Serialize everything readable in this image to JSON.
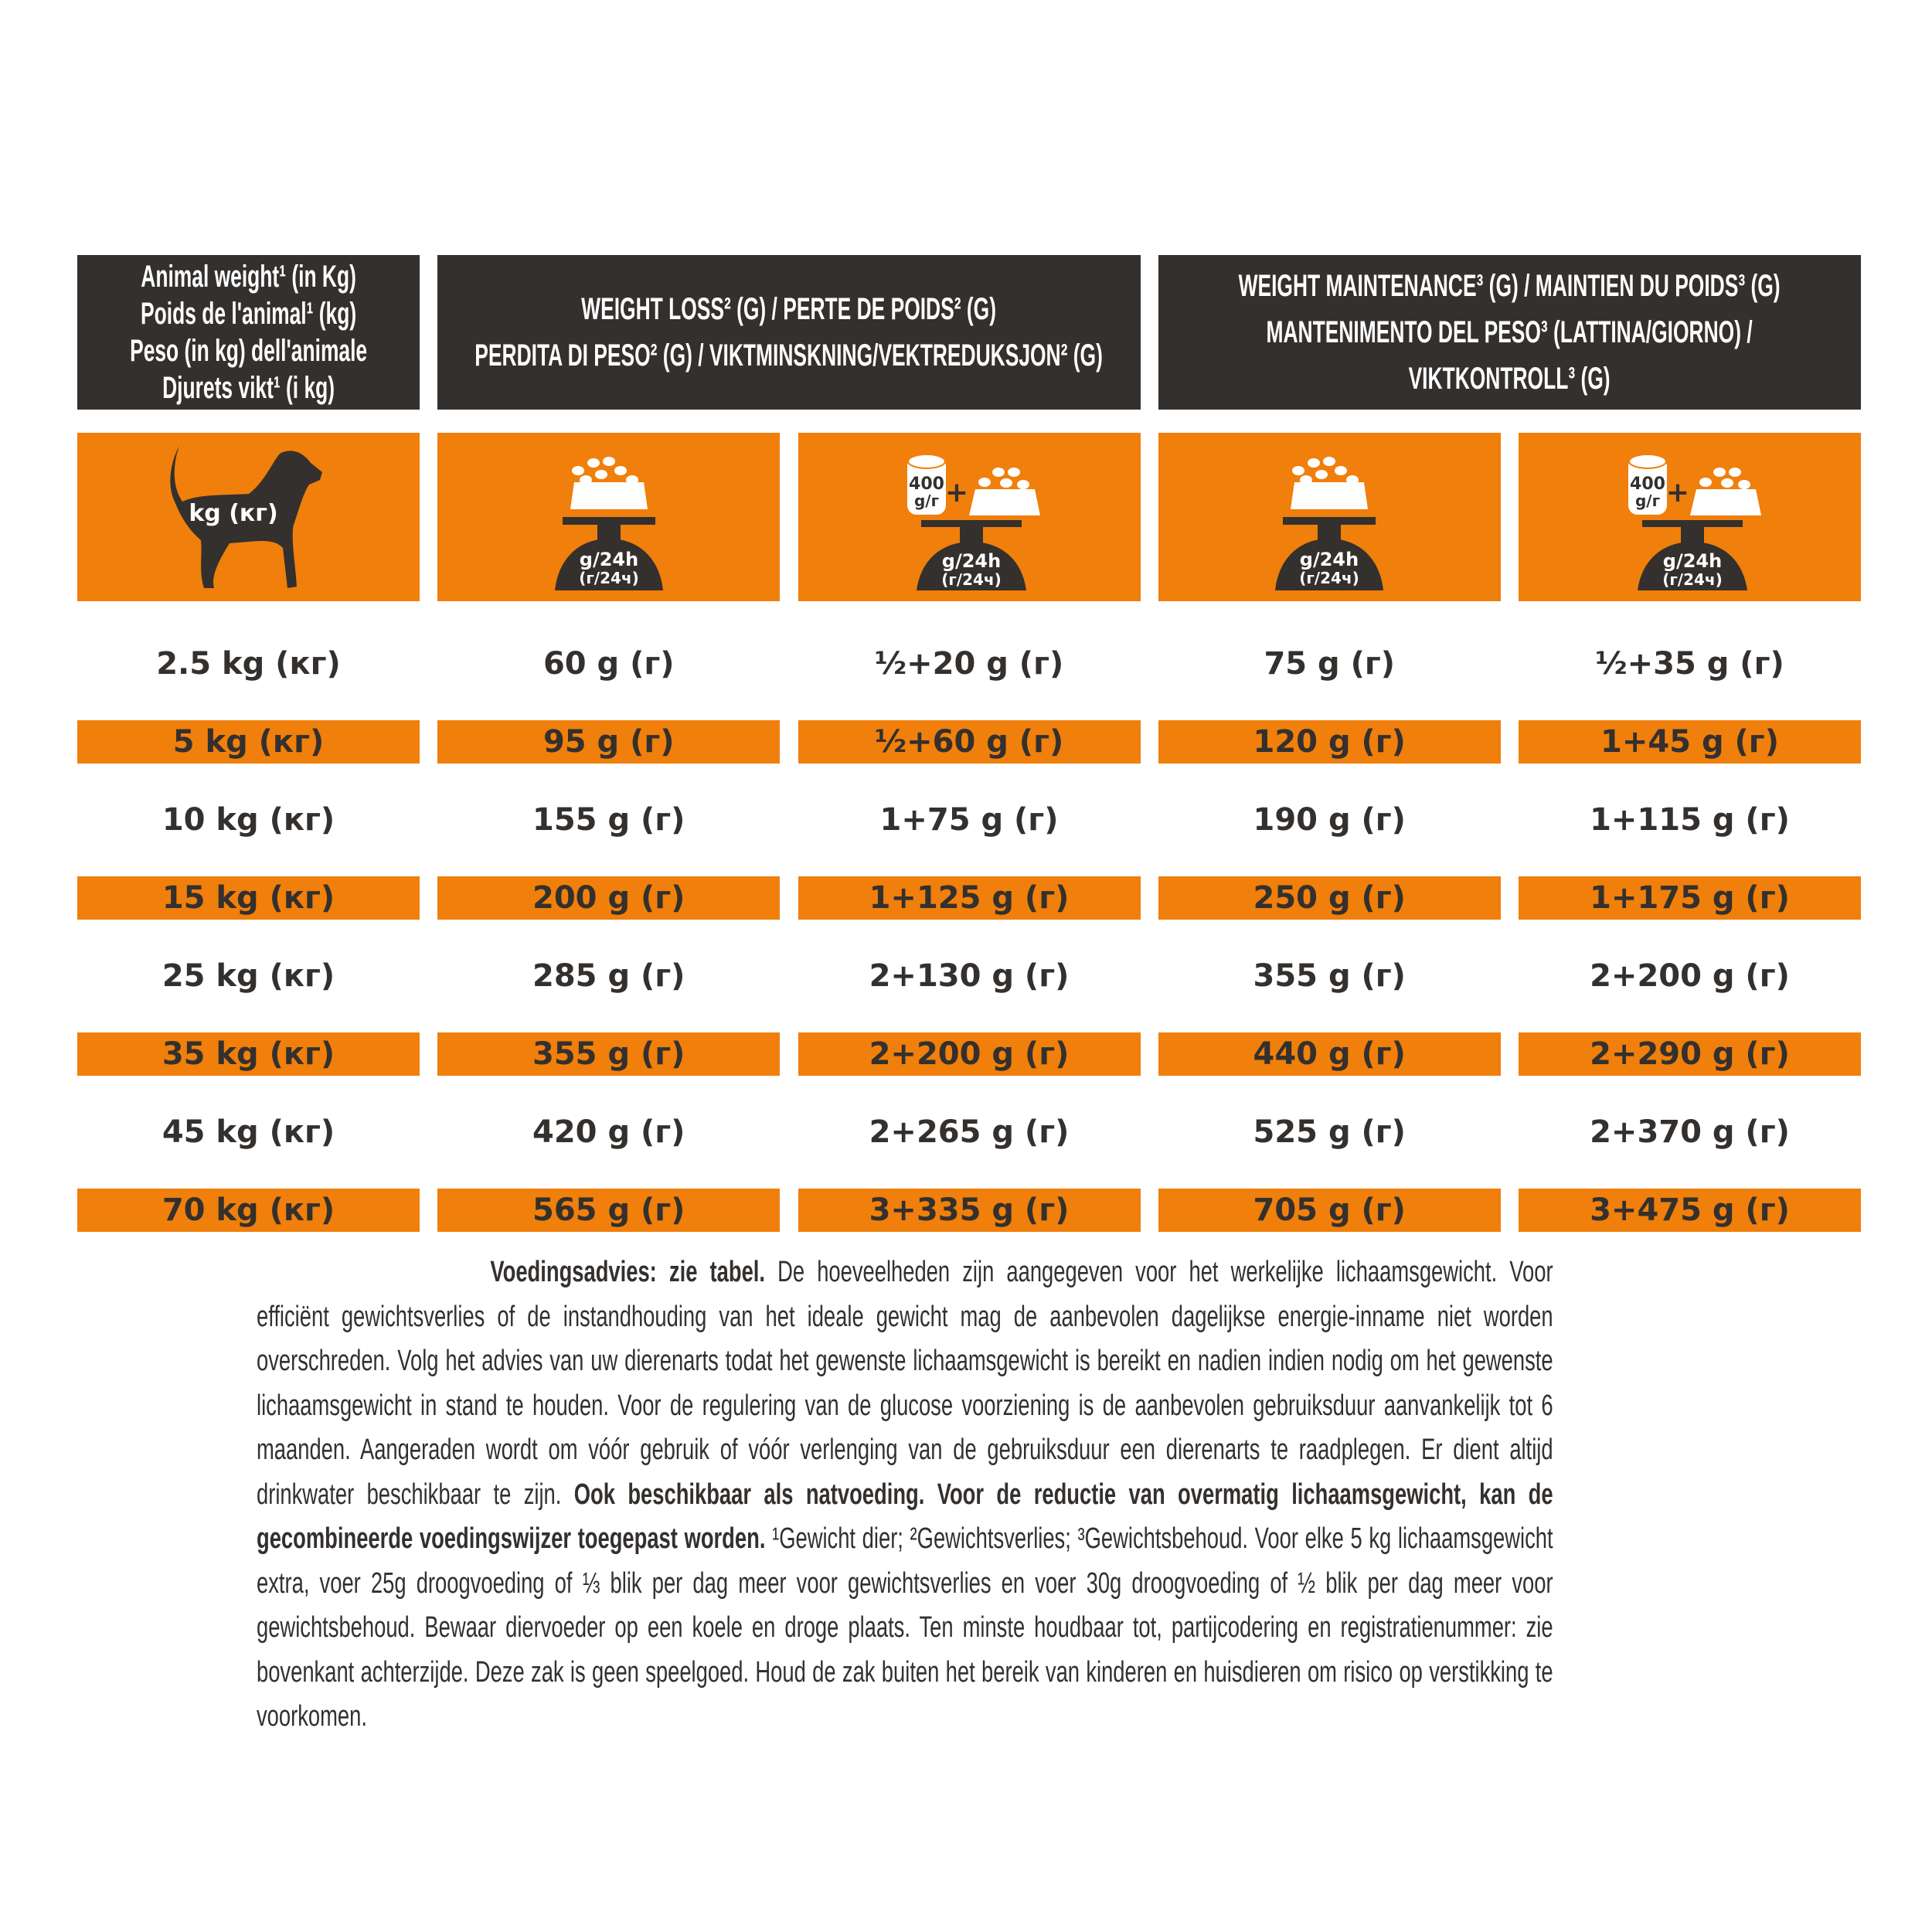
{
  "colors": {
    "orange": "#f07f0b",
    "dark": "#33302e"
  },
  "headers": {
    "weight": [
      "Animal weight¹ (in Kg)",
      "Poids de l'animal¹ (kg)",
      "Peso (in kg) dell'animale",
      "Djurets vikt¹ (i kg)"
    ],
    "loss": [
      "WEIGHT LOSS² (G) / PERTE DE POIDS² (G)",
      "PERDITA DI PESO² (G) / VIKTMINSKNING/VEKTREDUKSJON² (G)"
    ],
    "maintenance": [
      "WEIGHT MAINTENANCE³ (G) / MAINTIEN DU POIDS³ (G)",
      "MANTENIMENTO DEL PESO³ (LATTINA/GIORNO) /",
      "VIKTKONTROLL³ (G)"
    ]
  },
  "icons": {
    "dog_label": "kg (кг)",
    "scale_line1": "g/24h",
    "scale_line2": "(г/24ч)",
    "can_line1": "400",
    "can_line2": "g/г",
    "plus": "+",
    "names": [
      "dog-icon",
      "dry-food-scale-icon",
      "can-plus-dry-food-scale-icon",
      "dry-food-scale-icon",
      "can-plus-dry-food-scale-icon"
    ]
  },
  "rows": [
    [
      "2.5 kg (кг)",
      "60 g (г)",
      "½+20 g (г)",
      "75 g (г)",
      "½+35 g (г)"
    ],
    [
      "5 kg (кг)",
      "95 g (г)",
      "½+60 g (г)",
      "120 g (г)",
      "1+45 g (г)"
    ],
    [
      "10 kg (кг)",
      "155 g (г)",
      "1+75 g (г)",
      "190 g (г)",
      "1+115 g (г)"
    ],
    [
      "15 kg (кг)",
      "200 g (г)",
      "1+125 g (г)",
      "250 g (г)",
      "1+175 g (г)"
    ],
    [
      "25 kg (кг)",
      "285 g (г)",
      "2+130 g (г)",
      "355 g (г)",
      "2+200 g (г)"
    ],
    [
      "35 kg (кг)",
      "355 g (г)",
      "2+200 g (г)",
      "440 g (г)",
      "2+290 g (г)"
    ],
    [
      "45 kg (кг)",
      "420 g (г)",
      "2+265 g (г)",
      "525 g (г)",
      "2+370 g (г)"
    ],
    [
      "70 kg (кг)",
      "565 g (г)",
      "3+335 g (г)",
      "705 g (г)",
      "3+475 g (г)"
    ]
  ],
  "paragraph": [
    {
      "bold": true,
      "text": "Voedingsadvies: zie tabel."
    },
    {
      "bold": false,
      "text": " De hoeveelheden zijn aangegeven voor het werkelijke lichaamsgewicht. Voor efficiënt gewichtsverlies of de instandhouding van het ideale gewicht mag de aanbevolen dagelijkse energie-inname niet worden overschreden. Volg het advies van uw dierenarts todat het gewenste lichaamsgewicht is bereikt en nadien indien nodig om het gewenste lichaamsgewicht in stand te houden. Voor de regulering van de glucose voorziening is de aanbevolen gebruiksduur aanvankelijk tot 6 maanden. Aangeraden wordt om vóór gebruik of vóór verlenging van de gebruiksduur een dierenarts te raadplegen. Er dient altijd drinkwater beschikbaar te zijn. "
    },
    {
      "bold": true,
      "text": "Ook beschikbaar als natvoeding. Voor de reductie van overmatig lichaamsgewicht, kan de gecombineerde voedingswijzer toegepast worden."
    },
    {
      "bold": false,
      "text": " ¹Gewicht dier; ²Gewichtsverlies; ³Gewichtsbehoud. Voor elke 5 kg lichaamsgewicht extra, voer 25g droogvoeding of ⅓ blik per dag meer voor gewichtsverlies en voer 30g droogvoeding of ½ blik per dag meer voor gewichtsbehoud. Bewaar diervoeder op een koele en droge plaats. Ten minste houdbaar tot, partijcodering en registratienummer: zie bovenkant achterzijde. Deze zak is geen speelgoed. Houd de zak buiten het bereik van kinderen en huisdieren om risico op verstikking te voorkomen."
    }
  ]
}
